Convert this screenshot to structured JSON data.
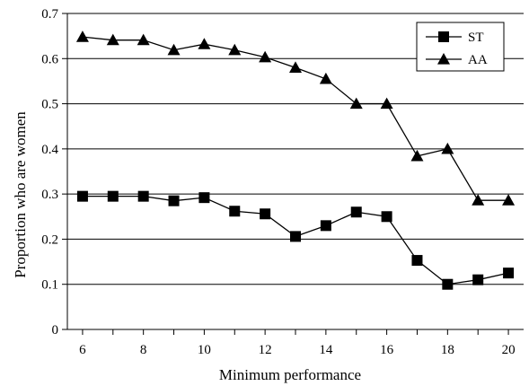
{
  "chart_data": {
    "type": "line",
    "title": "",
    "xlabel": "Minimum performance",
    "ylabel": "Proportion who are women",
    "x": [
      6,
      7,
      8,
      9,
      10,
      11,
      12,
      13,
      14,
      15,
      16,
      17,
      18,
      19,
      20
    ],
    "xlim": [
      5.5,
      20.5
    ],
    "ylim": [
      0,
      0.7
    ],
    "x_ticks": [
      6,
      8,
      10,
      12,
      14,
      16,
      18,
      20
    ],
    "x_tick_labels": [
      "6",
      "8",
      "10",
      "12",
      "14",
      "16",
      "18",
      "20"
    ],
    "y_ticks": [
      0,
      0.1,
      0.2,
      0.3,
      0.4,
      0.5,
      0.6,
      0.7
    ],
    "y_tick_labels": [
      "0",
      "0.1",
      "0.2",
      "0.3",
      "0.4",
      "0.5",
      "0.6",
      "0.7"
    ],
    "grid": "horizontal",
    "legend_position": "top-right",
    "series": [
      {
        "name": "ST",
        "marker": "square",
        "values": [
          0.295,
          0.295,
          0.295,
          0.285,
          0.292,
          0.262,
          0.256,
          0.206,
          0.23,
          0.26,
          0.25,
          0.153,
          0.1,
          0.11,
          0.125
        ]
      },
      {
        "name": "AA",
        "marker": "triangle",
        "values": [
          0.648,
          0.641,
          0.641,
          0.619,
          0.632,
          0.619,
          0.603,
          0.58,
          0.555,
          0.5,
          0.5,
          0.384,
          0.4,
          0.286,
          0.286
        ]
      }
    ]
  },
  "colors": {
    "line": "#000000",
    "grid": "#000000",
    "background": "#ffffff"
  }
}
